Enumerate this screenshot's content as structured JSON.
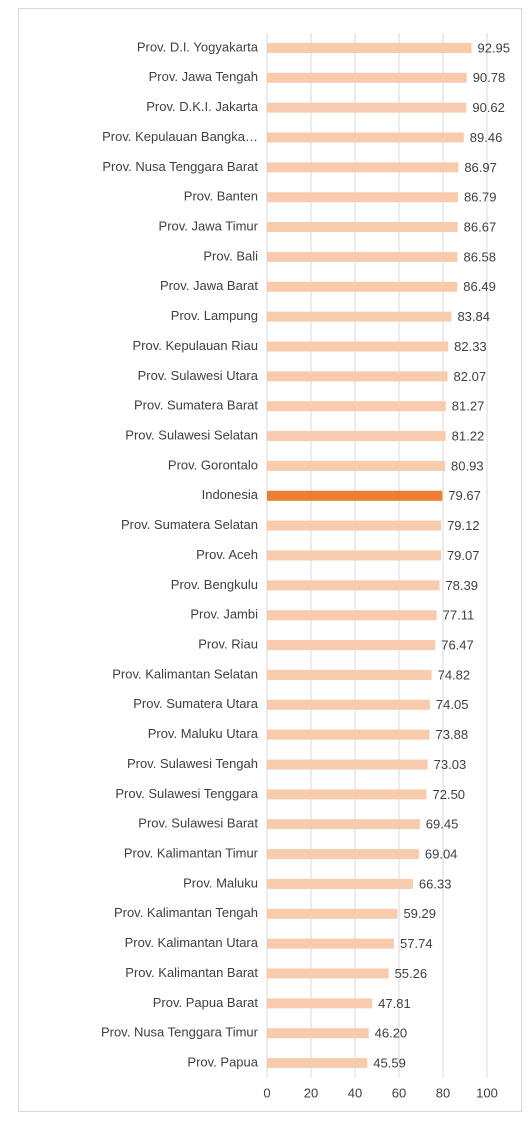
{
  "chart_data": {
    "type": "barh",
    "categories": [
      "Prov. D.I. Yogyakarta",
      "Prov. Jawa Tengah",
      "Prov. D.K.I. Jakarta",
      "Prov. Kepulauan Bangka…",
      "Prov. Nusa Tenggara Barat",
      "Prov. Banten",
      "Prov. Jawa Timur",
      "Prov. Bali",
      "Prov. Jawa Barat",
      "Prov. Lampung",
      "Prov. Kepulauan Riau",
      "Prov. Sulawesi Utara",
      "Prov. Sumatera Barat",
      "Prov. Sulawesi Selatan",
      "Prov. Gorontalo",
      "Indonesia",
      "Prov. Sumatera Selatan",
      "Prov. Aceh",
      "Prov. Bengkulu",
      "Prov. Jambi",
      "Prov. Riau",
      "Prov. Kalimantan Selatan",
      "Prov. Sumatera Utara",
      "Prov. Maluku Utara",
      "Prov. Sulawesi Tengah",
      "Prov. Sulawesi Tenggara",
      "Prov. Sulawesi Barat",
      "Prov. Kalimantan Timur",
      "Prov. Maluku",
      "Prov. Kalimantan Tengah",
      "Prov. Kalimantan Utara",
      "Prov. Kalimantan Barat",
      "Prov. Papua Barat",
      "Prov. Nusa Tenggara Timur",
      "Prov. Papua"
    ],
    "values": [
      92.95,
      90.78,
      90.62,
      89.46,
      86.97,
      86.79,
      86.67,
      86.58,
      86.49,
      83.84,
      82.33,
      82.07,
      81.27,
      81.22,
      80.93,
      79.67,
      79.12,
      79.07,
      78.39,
      77.11,
      76.47,
      74.82,
      74.05,
      73.88,
      73.03,
      72.5,
      69.45,
      69.04,
      66.33,
      59.29,
      57.74,
      55.26,
      47.81,
      46.2,
      45.59
    ],
    "value_labels": [
      "92.95",
      "90.78",
      "90.62",
      "89.46",
      "86.97",
      "86.79",
      "86.67",
      "86.58",
      "86.49",
      "83.84",
      "82.33",
      "82.07",
      "81.27",
      "81.22",
      "80.93",
      "79.67",
      "79.12",
      "79.07",
      "78.39",
      "77.11",
      "76.47",
      "74.82",
      "74.05",
      "73.88",
      "73.03",
      "72.50",
      "69.45",
      "69.04",
      "66.33",
      "59.29",
      "57.74",
      "55.26",
      "47.81",
      "46.20",
      "45.59"
    ],
    "colors": [
      "#f8cbad",
      "#f8cbad",
      "#f8cbad",
      "#f8cbad",
      "#f8cbad",
      "#f8cbad",
      "#f8cbad",
      "#f8cbad",
      "#f8cbad",
      "#f8cbad",
      "#f8cbad",
      "#f8cbad",
      "#f8cbad",
      "#f8cbad",
      "#f8cbad",
      "#ed7d31",
      "#f8cbad",
      "#f8cbad",
      "#f8cbad",
      "#f8cbad",
      "#f8cbad",
      "#f8cbad",
      "#f8cbad",
      "#f8cbad",
      "#f8cbad",
      "#f8cbad",
      "#f8cbad",
      "#f8cbad",
      "#f8cbad",
      "#f8cbad",
      "#f8cbad",
      "#f8cbad",
      "#f8cbad",
      "#f8cbad",
      "#f8cbad"
    ],
    "xlim": [
      0,
      100
    ],
    "xticks": [
      0,
      20,
      40,
      60,
      80,
      100
    ],
    "grid": true
  }
}
